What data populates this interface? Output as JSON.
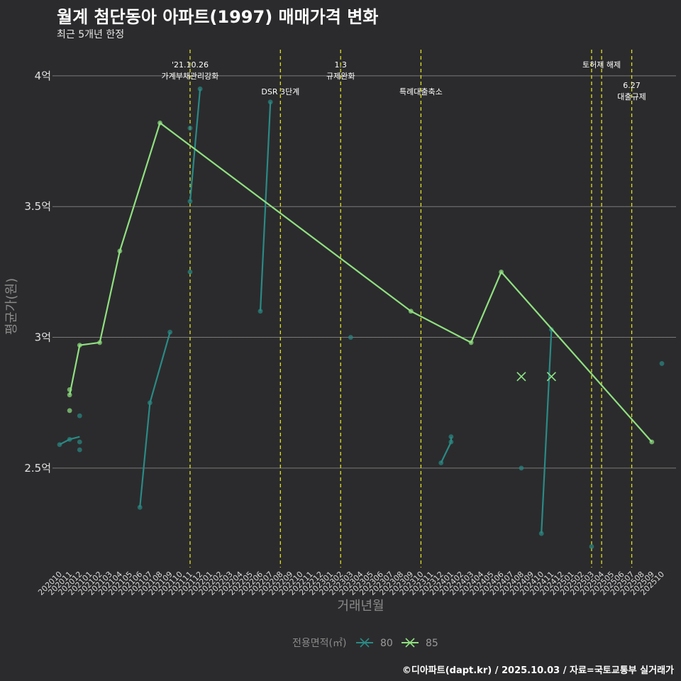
{
  "title": "월계 첨단동아 아파트(1997) 매매가격 변화",
  "subtitle": "최근 5개년 한정",
  "caption": "©디아파트(dapt.kr) / 2025.10.03 / 자료=국토교통부 실거래가",
  "colors": {
    "s80": "#2a8a85",
    "s85": "#90e080",
    "vline": "#e0e020",
    "grid": "#7a7a7a",
    "bg": "#2b2b2d"
  },
  "chart_data": {
    "type": "line",
    "title": "월계 첨단동아 아파트(1997) 매매가격 변화",
    "xlabel": "거래년월",
    "ylabel": "평균가(원)",
    "ylim": [
      2.12,
      4.1
    ],
    "yticks": [
      {
        "v": 2.5,
        "label": "2.5억"
      },
      {
        "v": 3,
        "label": "3억"
      },
      {
        "v": 3.5,
        "label": "3.5억"
      },
      {
        "v": 4,
        "label": "4억"
      }
    ],
    "categories": [
      "202010",
      "202011",
      "202012",
      "202101",
      "202102",
      "202103",
      "202104",
      "202105",
      "202106",
      "202107",
      "202108",
      "202109",
      "202110",
      "202111",
      "202112",
      "202201",
      "202202",
      "202203",
      "202204",
      "202205",
      "202206",
      "202207",
      "202208",
      "202209",
      "202210",
      "202211",
      "202212",
      "202301",
      "202302",
      "202303",
      "202304",
      "202305",
      "202306",
      "202307",
      "202308",
      "202309",
      "202310",
      "202311",
      "202312",
      "202401",
      "202402",
      "202403",
      "202404",
      "202405",
      "202406",
      "202407",
      "202408",
      "202409",
      "202410",
      "202411",
      "202412",
      "202501",
      "202502",
      "202503",
      "202504",
      "202505",
      "202506",
      "202507",
      "202508",
      "202509",
      "202510"
    ],
    "legend_title": "전용면적(㎡)",
    "series": [
      {
        "name": "80",
        "color_key": "s80",
        "lines": [
          [
            [
              0,
              2.59
            ],
            [
              1,
              2.61
            ],
            [
              2,
              2.62
            ]
          ],
          [
            [
              8,
              2.35
            ],
            [
              9,
              2.75
            ],
            [
              11,
              3.02
            ]
          ],
          [
            [
              13,
              3.52
            ],
            [
              14,
              3.95
            ]
          ],
          [
            [
              20,
              3.1
            ],
            [
              21,
              3.9
            ]
          ],
          [
            [
              38,
              2.52
            ],
            [
              39,
              2.6
            ],
            [
              39,
              2.62
            ]
          ],
          [
            [
              48,
              2.25
            ],
            [
              49,
              3.03
            ]
          ]
        ],
        "points": [
          [
            0,
            2.59
          ],
          [
            1,
            2.61
          ],
          [
            2,
            2.57
          ],
          [
            2,
            2.6
          ],
          [
            2,
            2.7
          ],
          [
            8,
            2.35
          ],
          [
            9,
            2.75
          ],
          [
            11,
            3.02
          ],
          [
            13,
            3.25
          ],
          [
            13,
            3.52
          ],
          [
            13,
            3.8
          ],
          [
            14,
            3.95
          ],
          [
            20,
            3.1
          ],
          [
            21,
            3.9
          ],
          [
            29,
            3.0
          ],
          [
            38,
            2.52
          ],
          [
            39,
            2.6
          ],
          [
            39,
            2.62
          ],
          [
            46,
            2.5
          ],
          [
            48,
            2.25
          ],
          [
            49,
            3.03
          ],
          [
            53,
            2.2
          ],
          [
            60,
            2.9
          ]
        ],
        "crosses": [
          [
            46,
            2.85
          ],
          [
            49,
            2.85
          ]
        ]
      },
      {
        "name": "85",
        "color_key": "s85",
        "lines": [
          [
            [
              1,
              2.78
            ],
            [
              2,
              2.97
            ],
            [
              4,
              2.98
            ],
            [
              6,
              3.33
            ],
            [
              10,
              3.82
            ],
            [
              35,
              3.1
            ],
            [
              41,
              2.98
            ],
            [
              44,
              3.25
            ],
            [
              59,
              2.6
            ]
          ]
        ],
        "points": [
          [
            1,
            2.72
          ],
          [
            1,
            2.78
          ],
          [
            1,
            2.8
          ],
          [
            2,
            2.97
          ],
          [
            4,
            2.98
          ],
          [
            6,
            3.33
          ],
          [
            10,
            3.82
          ],
          [
            35,
            3.1
          ],
          [
            41,
            2.98
          ],
          [
            44,
            3.25
          ],
          [
            59,
            2.6
          ]
        ],
        "crosses": [
          [
            46,
            2.85
          ],
          [
            49,
            2.85
          ]
        ]
      }
    ],
    "events": [
      {
        "cat": 13,
        "lines": [
          "'21.10.26",
          "가계부채관리강화"
        ],
        "level": 0
      },
      {
        "cat": 22,
        "lines": [
          "DSR 3단계"
        ],
        "level": 1
      },
      {
        "cat": 28,
        "lines": [
          "1.3",
          "규제완화"
        ],
        "level": 0
      },
      {
        "cat": 36,
        "lines": [
          "특례대출축소"
        ],
        "level": 1
      },
      {
        "cat": 53,
        "lines": [
          ""
        ],
        "level": 0
      },
      {
        "cat": 54,
        "lines": [
          "토허제 해제"
        ],
        "level": 0
      },
      {
        "cat": 57,
        "lines": [
          "6.27",
          "대출규제"
        ],
        "level": 2
      }
    ]
  }
}
